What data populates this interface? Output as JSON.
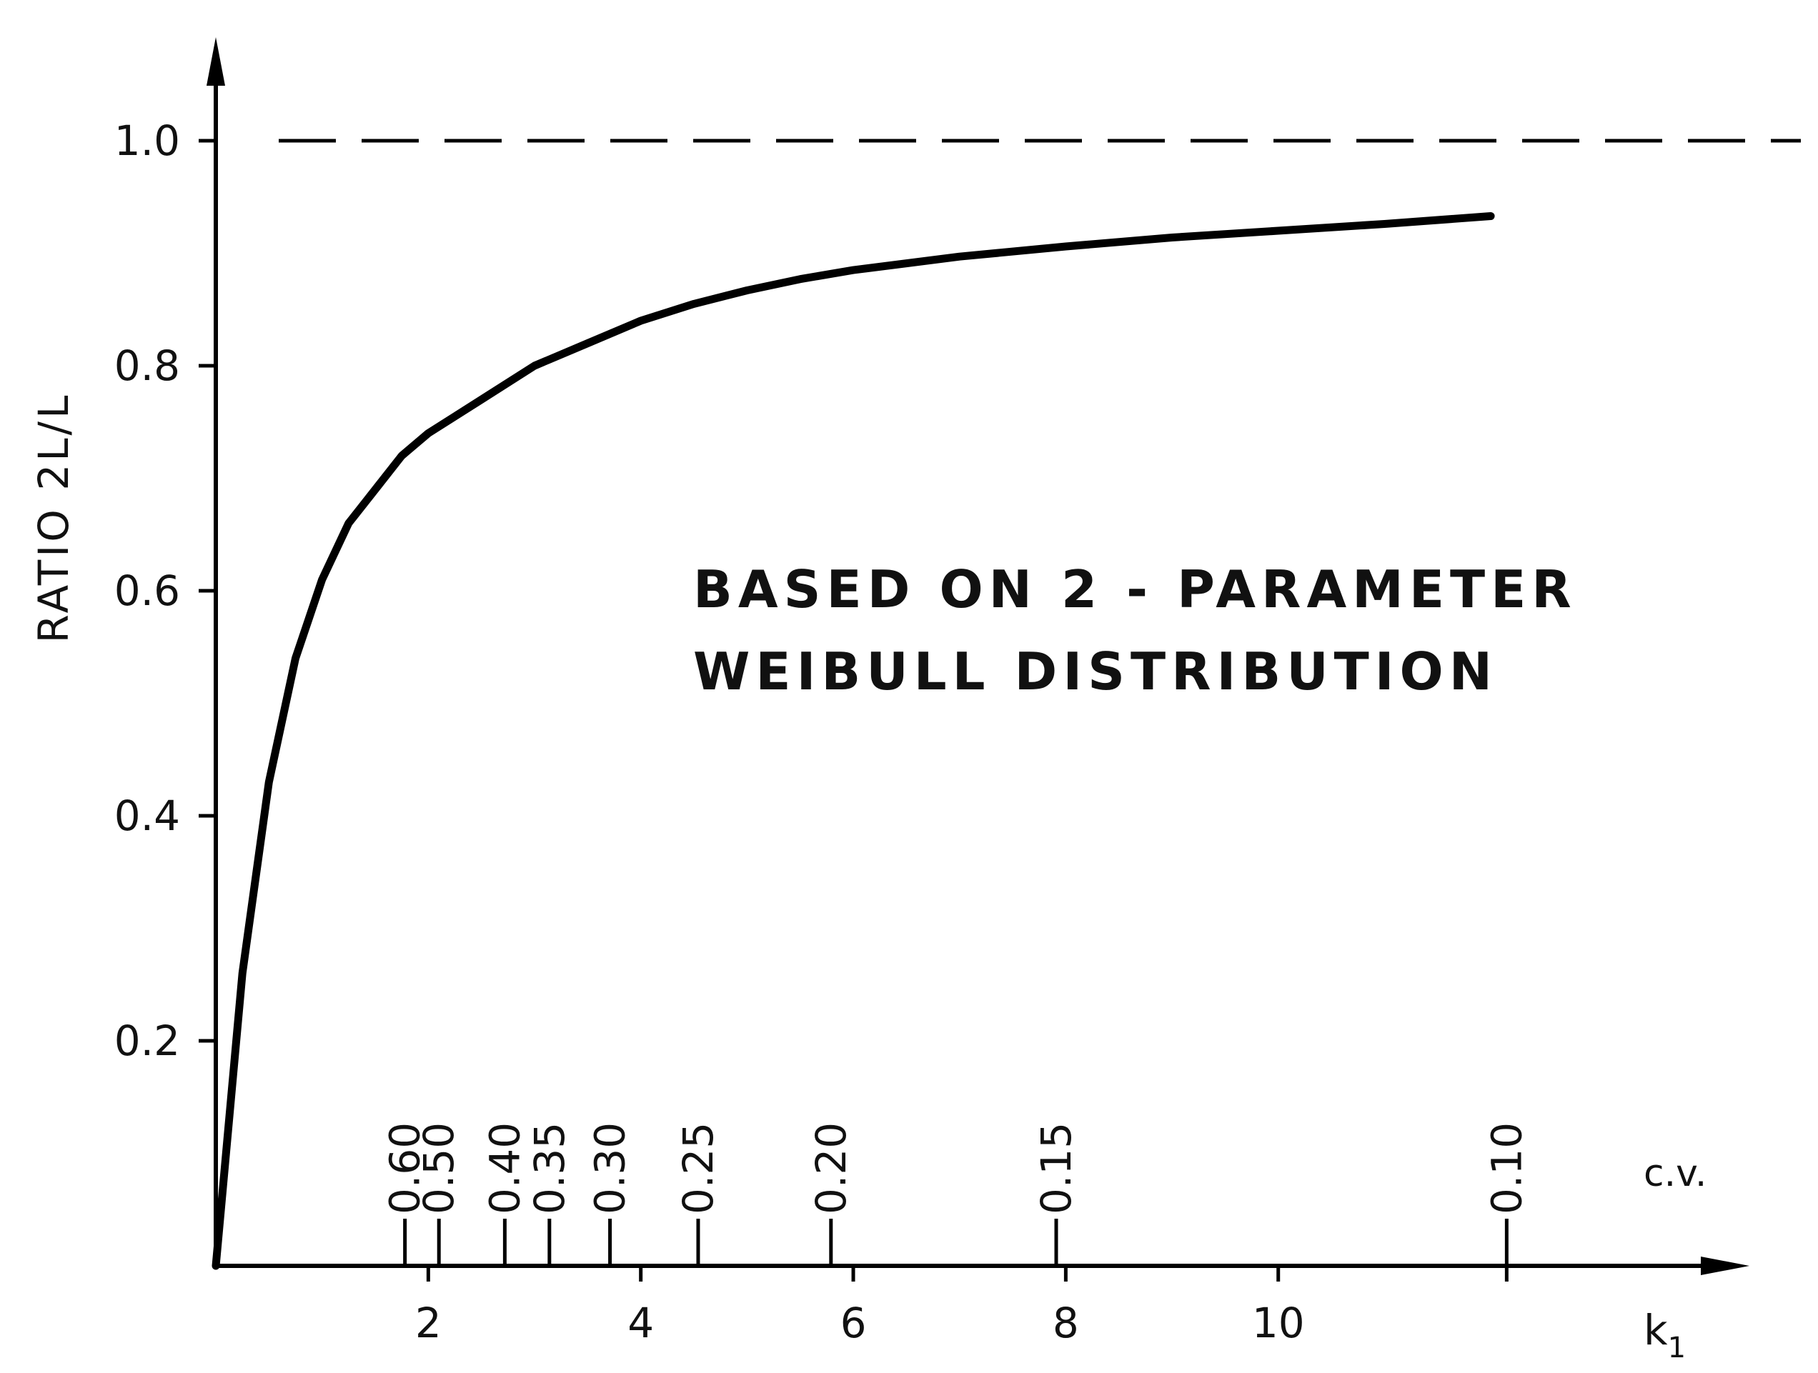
{
  "chart_data": {
    "type": "line",
    "title": "",
    "xlabel": "k₁",
    "ylabel": "RATIO 2L/L",
    "xlim": [
      0,
      12.8
    ],
    "ylim": [
      0,
      1.0
    ],
    "grid": false,
    "x_ticks": [
      2,
      4,
      6,
      8,
      10
    ],
    "x_tick_labels": [
      "2",
      "4",
      "6",
      "8",
      "10"
    ],
    "y_ticks": [
      0.2,
      0.4,
      0.6,
      0.8,
      1.0
    ],
    "y_tick_labels": [
      "0.2",
      "0.4",
      "0.6",
      "0.8",
      "1.0"
    ],
    "series": [
      {
        "x": [
          0,
          0.25,
          0.5,
          0.75,
          1.0,
          1.25,
          1.5,
          1.75,
          2.0,
          2.5,
          3.0,
          3.5,
          4.0,
          4.5,
          5.0,
          5.5,
          6.0,
          7.0,
          8.0,
          9.0,
          10.0,
          11.0,
          12.0
        ],
        "values": [
          0.0,
          0.26,
          0.43,
          0.54,
          0.61,
          0.66,
          0.69,
          0.72,
          0.74,
          0.77,
          0.8,
          0.82,
          0.84,
          0.855,
          0.867,
          0.877,
          0.885,
          0.897,
          0.906,
          0.914,
          0.92,
          0.926,
          0.933
        ]
      }
    ],
    "reference_line": {
      "y": 1.0,
      "style": "dashed"
    },
    "annotation": {
      "lines": [
        "BASED ON 2 - PARAMETER",
        "WEIBULL DISTRIBUTION"
      ]
    },
    "secondary_scale": {
      "label": "c.v.",
      "ticks": [
        {
          "k": 1.78,
          "label": "0.60"
        },
        {
          "k": 2.1,
          "label": "0.50"
        },
        {
          "k": 2.72,
          "label": "0.40"
        },
        {
          "k": 3.14,
          "label": "0.35"
        },
        {
          "k": 3.71,
          "label": "0.30"
        },
        {
          "k": 4.54,
          "label": "0.25"
        },
        {
          "k": 5.79,
          "label": "0.20"
        },
        {
          "k": 7.91,
          "label": "0.15"
        },
        {
          "k": 12.15,
          "label": "0.10"
        }
      ]
    }
  }
}
